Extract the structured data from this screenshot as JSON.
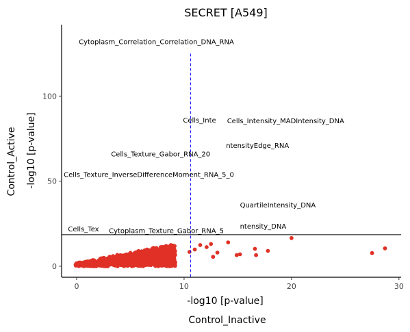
{
  "chart_data": {
    "type": "scatter",
    "title": "SECRET [A549]",
    "xlabel": "-log10 [p-value]",
    "ylabel": "-log10 [p-value]",
    "outer_xlabel": "Control_Inactive",
    "outer_ylabel": "Control_Active",
    "xlim": [
      -1.4,
      30.2
    ],
    "ylim": [
      -6.5,
      142
    ],
    "x_ticks": [
      0,
      10,
      20,
      30
    ],
    "y_ticks": [
      0,
      50,
      100
    ],
    "grid": false,
    "point_color": "#e03127",
    "threshold_color": "#0000ff",
    "vertical_threshold": 10.6,
    "horizontal_line": 18.5,
    "outliers": [
      {
        "x": 28.7,
        "y": 10.5
      },
      {
        "x": 27.5,
        "y": 7.7
      },
      {
        "x": 20.0,
        "y": 16.5
      },
      {
        "x": 17.8,
        "y": 9.0
      },
      {
        "x": 16.7,
        "y": 6.5
      },
      {
        "x": 16.6,
        "y": 10.2
      },
      {
        "x": 15.2,
        "y": 7.0
      },
      {
        "x": 14.9,
        "y": 6.5
      },
      {
        "x": 13.1,
        "y": 8.0
      },
      {
        "x": 12.7,
        "y": 5.5
      },
      {
        "x": 12.1,
        "y": 11.2
      },
      {
        "x": 11.5,
        "y": 12.4
      },
      {
        "x": 11.0,
        "y": 9.8
      },
      {
        "x": 10.5,
        "y": 8.4
      },
      {
        "x": 14.1,
        "y": 14.0
      },
      {
        "x": 12.5,
        "y": 13.0
      }
    ],
    "annotations": [
      {
        "text": "Cytoplasm_Correlation_Correlation_DNA_RNA",
        "x": 0.2,
        "y": 130.5
      },
      {
        "text": "Cells_Inte",
        "x": 9.9,
        "y": 84.5
      },
      {
        "text": "Cells_Intensity_MADIntensity_DNA",
        "x": 14.0,
        "y": 84.0
      },
      {
        "text": "ntensityEdge_RNA",
        "x": 13.9,
        "y": 69.5
      },
      {
        "text": "Cells_Texture_Gabor_RNA_20",
        "x": 3.2,
        "y": 64.5
      },
      {
        "text": "Cells_Texture_InverseDifferenceMoment_RNA_5_0",
        "x": -1.2,
        "y": 52.5
      },
      {
        "text": "QuartileIntensity_DNA",
        "x": 15.2,
        "y": 34.5
      },
      {
        "text": "ntensity_DNA",
        "x": 15.2,
        "y": 22.0
      },
      {
        "text": "Cells_Tex",
        "x": -0.8,
        "y": 20.5
      },
      {
        "text": "Cytoplasm_Texture_Gabor_RNA_5",
        "x": 3.0,
        "y": 19.5
      }
    ]
  }
}
